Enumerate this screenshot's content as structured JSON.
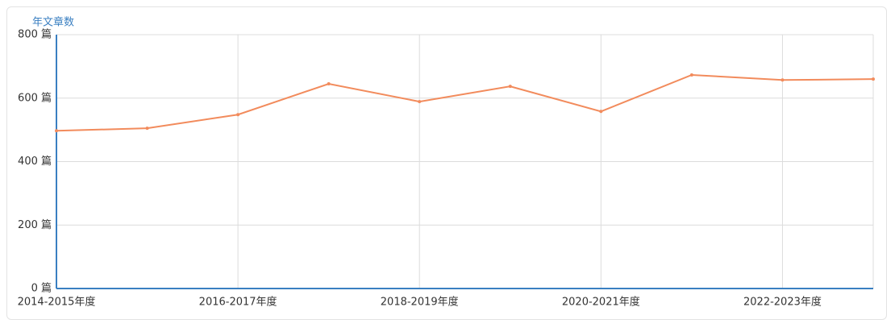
{
  "chart_data": {
    "type": "line",
    "y_label": "年文章数",
    "categories": [
      "2014-2015年度",
      null,
      "2016-2017年度",
      null,
      "2018-2019年度",
      null,
      "2020-2021年度",
      null,
      "2022-2023年度",
      null
    ],
    "values": [
      497,
      505,
      548,
      645,
      589,
      637,
      558,
      673,
      657,
      660
    ],
    "color": "#f28b5c",
    "ylim": [
      0,
      800
    ],
    "yticks": [
      {
        "value": 0,
        "label": "0 篇"
      },
      {
        "value": 200,
        "label": "200 篇"
      },
      {
        "value": 400,
        "label": "400 篇"
      },
      {
        "value": 600,
        "label": "600 篇"
      },
      {
        "value": 800,
        "label": "800 篇"
      }
    ],
    "grid": true
  }
}
